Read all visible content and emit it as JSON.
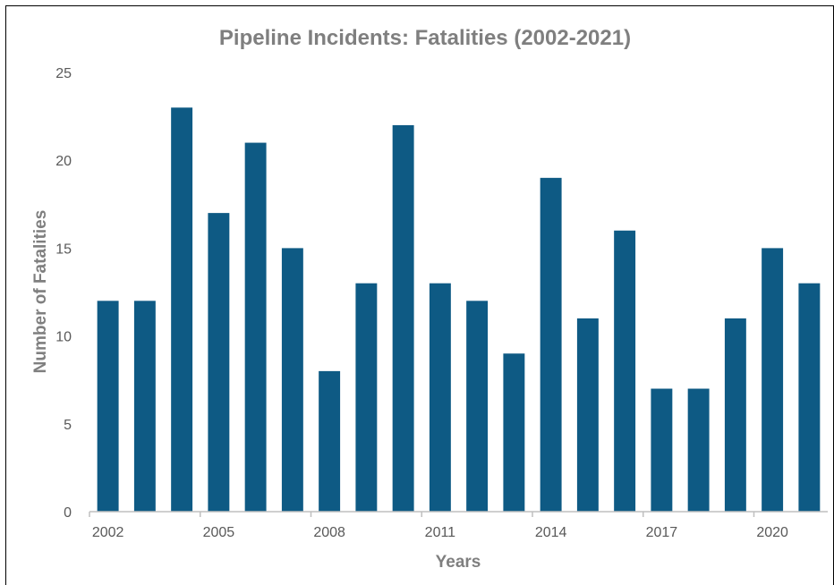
{
  "chart_data": {
    "type": "bar",
    "title": "Pipeline Incidents: Fatalities (2002-2021)",
    "xlabel": "Years",
    "ylabel": "Number of Fatalities",
    "categories": [
      "2002",
      "2003",
      "2004",
      "2005",
      "2006",
      "2007",
      "2008",
      "2009",
      "2010",
      "2011",
      "2012",
      "2013",
      "2014",
      "2015",
      "2016",
      "2017",
      "2018",
      "2019",
      "2020",
      "2021"
    ],
    "x_tick_labels": [
      "2002",
      "2005",
      "2008",
      "2011",
      "2014",
      "2017",
      "2020"
    ],
    "y_ticks": [
      "0",
      "5",
      "10",
      "15",
      "20",
      "25"
    ],
    "values": [
      12,
      12,
      23,
      17,
      21,
      15,
      8,
      13,
      22,
      13,
      12,
      9,
      19,
      11,
      16,
      7,
      7,
      11,
      15,
      13
    ],
    "ylim": [
      0,
      25
    ],
    "grid": false,
    "legend": "none",
    "bar_color": "#0e5a84",
    "axis_color": "#bfbfbf"
  }
}
